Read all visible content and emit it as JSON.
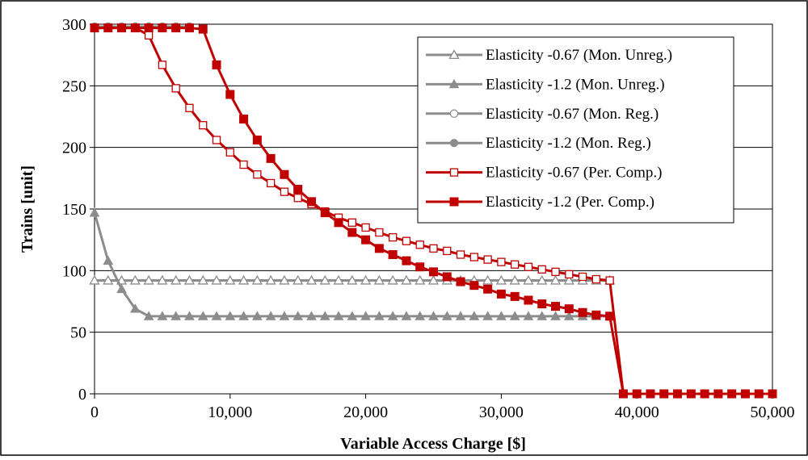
{
  "chart_data": {
    "type": "line",
    "title": "",
    "xlabel": "Variable Access Charge [$]",
    "ylabel": "Trains [unit]",
    "xlim": [
      0,
      50000
    ],
    "ylim": [
      0,
      300
    ],
    "x_ticks": [
      0,
      10000,
      20000,
      30000,
      40000,
      50000
    ],
    "x_tick_labels": [
      "0",
      "10,000",
      "20,000",
      "30,000",
      "40,000",
      "50,000"
    ],
    "y_ticks": [
      0,
      50,
      100,
      150,
      200,
      250,
      300
    ],
    "y_tick_labels": [
      "0",
      "50",
      "100",
      "150",
      "200",
      "250",
      "300"
    ],
    "grid": "horizontal",
    "legend_position": "top-right",
    "colors": {
      "gray": "#8c8c8c",
      "red": "#c00000"
    },
    "series": [
      {
        "name": "Elasticity -0.67 (Mon. Unreg.)",
        "color": "#8c8c8c",
        "marker": "triangle-open",
        "x": [
          0,
          1000,
          2000,
          3000,
          4000,
          5000,
          6000,
          7000,
          8000,
          9000,
          10000,
          11000,
          12000,
          13000,
          14000,
          15000,
          16000,
          17000,
          18000,
          19000,
          20000,
          21000,
          22000,
          23000,
          24000,
          25000,
          26000,
          27000,
          28000,
          29000,
          30000,
          31000,
          32000,
          33000,
          34000,
          35000,
          36000,
          37000,
          38000
        ],
        "y": [
          92,
          92,
          92,
          92,
          92,
          92,
          92,
          92,
          92,
          92,
          92,
          92,
          92,
          92,
          92,
          92,
          92,
          92,
          92,
          92,
          92,
          92,
          92,
          92,
          92,
          92,
          92,
          92,
          92,
          92,
          92,
          92,
          92,
          92,
          92,
          92,
          92,
          92,
          92
        ]
      },
      {
        "name": "Elasticity -1.2 (Mon. Unreg.)",
        "color": "#8c8c8c",
        "marker": "triangle-filled",
        "x": [
          0,
          1000,
          2000,
          3000,
          4000,
          5000,
          6000,
          7000,
          8000,
          9000,
          10000,
          11000,
          12000,
          13000,
          14000,
          15000,
          16000,
          17000,
          18000,
          19000,
          20000,
          21000,
          22000,
          23000,
          24000,
          25000,
          26000,
          27000,
          28000,
          29000,
          30000,
          31000,
          32000,
          33000,
          34000,
          35000,
          36000,
          37000,
          38000
        ],
        "y": [
          147,
          108,
          85,
          69,
          63,
          63,
          63,
          63,
          63,
          63,
          63,
          63,
          63,
          63,
          63,
          63,
          63,
          63,
          63,
          63,
          63,
          63,
          63,
          63,
          63,
          63,
          63,
          63,
          63,
          63,
          63,
          63,
          63,
          63,
          63,
          63,
          63,
          63,
          63
        ]
      },
      {
        "name": "Elasticity -0.67 (Mon. Reg.)",
        "color": "#8c8c8c",
        "marker": "circle-open",
        "x": [
          0,
          1000,
          2000,
          3000,
          4000,
          5000,
          6000,
          7000
        ],
        "y": [
          298,
          298,
          298,
          298,
          298,
          298,
          298,
          298
        ]
      },
      {
        "name": "Elasticity -1.2 (Mon. Reg.)",
        "color": "#8c8c8c",
        "marker": "circle-filled",
        "x": [
          0,
          1000,
          2000,
          3000,
          4000,
          5000,
          6000,
          7000
        ],
        "y": [
          298,
          298,
          298,
          298,
          298,
          298,
          298,
          298
        ]
      },
      {
        "name": "Elasticity -0.67 (Per. Comp.)",
        "color": "#c00000",
        "marker": "square-open",
        "x": [
          0,
          1000,
          2000,
          3000,
          4000,
          5000,
          6000,
          7000,
          8000,
          9000,
          10000,
          11000,
          12000,
          13000,
          14000,
          15000,
          16000,
          17000,
          18000,
          19000,
          20000,
          21000,
          22000,
          23000,
          24000,
          25000,
          26000,
          27000,
          28000,
          29000,
          30000,
          31000,
          32000,
          33000,
          34000,
          35000,
          36000,
          37000,
          38000,
          39000,
          40000,
          41000,
          42000,
          43000,
          44000,
          45000,
          46000,
          47000,
          48000,
          49000,
          50000
        ],
        "y": [
          297,
          297,
          297,
          297,
          291,
          267,
          248,
          232,
          218,
          206,
          196,
          186,
          178,
          171,
          164,
          159,
          154,
          148,
          143,
          139,
          135,
          131,
          127,
          124,
          121,
          118,
          116,
          113,
          111,
          109,
          107,
          105,
          103,
          101,
          99,
          97,
          95,
          93,
          92,
          0,
          0,
          0,
          0,
          0,
          0,
          0,
          0,
          0,
          0,
          0,
          0
        ]
      },
      {
        "name": "Elasticity -1.2 (Per. Comp.)",
        "color": "#c00000",
        "marker": "square-filled",
        "x": [
          0,
          1000,
          2000,
          3000,
          4000,
          5000,
          6000,
          7000,
          8000,
          9000,
          10000,
          11000,
          12000,
          13000,
          14000,
          15000,
          16000,
          17000,
          18000,
          19000,
          20000,
          21000,
          22000,
          23000,
          24000,
          25000,
          26000,
          27000,
          28000,
          29000,
          30000,
          31000,
          32000,
          33000,
          34000,
          35000,
          36000,
          37000,
          38000,
          39000,
          40000,
          41000,
          42000,
          43000,
          44000,
          45000,
          46000,
          47000,
          48000,
          49000,
          50000
        ],
        "y": [
          297,
          297,
          297,
          297,
          297,
          297,
          297,
          297,
          296,
          267,
          243,
          223,
          206,
          191,
          178,
          166,
          156,
          147,
          139,
          131,
          125,
          118,
          113,
          108,
          103,
          99,
          95,
          91,
          88,
          85,
          81,
          79,
          76,
          73,
          71,
          69,
          66,
          64,
          63,
          0,
          0,
          0,
          0,
          0,
          0,
          0,
          0,
          0,
          0,
          0,
          0
        ]
      }
    ]
  }
}
